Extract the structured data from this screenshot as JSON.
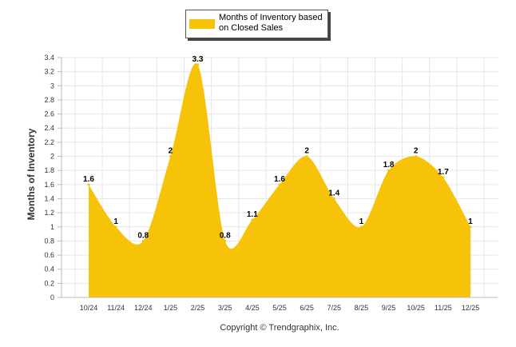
{
  "chart_data": {
    "type": "area",
    "title": "",
    "xlabel": "",
    "ylabel": "Months of Inventory",
    "ylim": [
      0,
      3.4
    ],
    "y_ticks": [
      "0",
      "0.2",
      "0.4",
      "0.6",
      "0.8",
      "1",
      "1.2",
      "1.4",
      "1.6",
      "1.8",
      "2",
      "2.2",
      "2.4",
      "2.6",
      "2.8",
      "3",
      "3.2",
      "3.4"
    ],
    "categories": [
      "10/24",
      "11/24",
      "12/24",
      "1/25",
      "2/25",
      "3/25",
      "4/25",
      "5/25",
      "6/25",
      "7/25",
      "8/25",
      "9/25",
      "10/25",
      "11/25",
      "12/25"
    ],
    "series": [
      {
        "name": "Months of Inventory based on Closed Sales",
        "values": [
          1.6,
          1,
          0.8,
          2,
          3.3,
          0.8,
          1.1,
          1.6,
          2,
          1.4,
          1,
          1.8,
          2,
          1.7,
          1
        ],
        "labels": [
          "1.6",
          "1",
          "0.8",
          "2",
          "3.3",
          "0.8",
          "1.1",
          "1.6",
          "2",
          "1.4",
          "1",
          "1.8",
          "2",
          "1.7",
          "1"
        ]
      }
    ],
    "legend": {
      "position": "top-center",
      "label": "Months of Inventory based on Closed Sales"
    },
    "grid": true,
    "colors": {
      "fill": "#F7C308",
      "grid": "#E6E6E6",
      "axis": "#BBBBBB"
    }
  },
  "footer": {
    "copyright": "Copyright © Trendgraphix, Inc."
  }
}
